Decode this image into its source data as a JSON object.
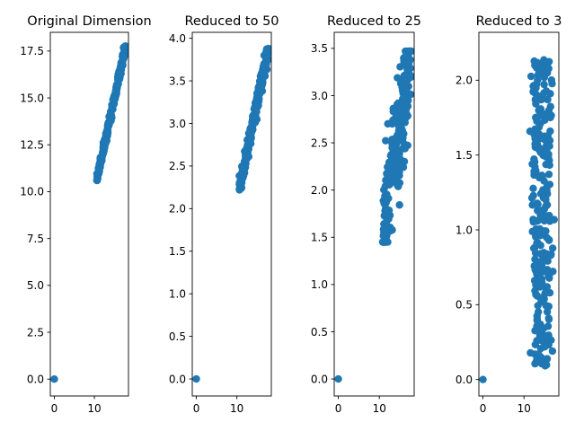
{
  "figure": {
    "background": "#ffffff",
    "marker_color": "#1f77b4"
  },
  "chart_data": [
    {
      "type": "scatter",
      "title": "Original Dimension",
      "xlim": [
        -1,
        18.5
      ],
      "ylim": [
        -0.9,
        18.5
      ],
      "xticks": [
        0,
        10
      ],
      "xtick_labels": [
        "0",
        "10"
      ],
      "yticks": [
        0,
        2.5,
        5,
        7.5,
        10,
        12.5,
        15,
        17.5
      ],
      "ytick_labels": [
        "0.0",
        "2.5",
        "5.0",
        "7.5",
        "10.0",
        "12.5",
        "15.0",
        "17.5"
      ],
      "origin_point": [
        0,
        0
      ],
      "cluster": {
        "x_range": [
          10.6,
          17.8
        ],
        "y_range": [
          10.6,
          17.8
        ],
        "y_spread": 0.15
      }
    },
    {
      "type": "scatter",
      "title": "Reduced to 50",
      "xlim": [
        -1,
        18.5
      ],
      "ylim": [
        -0.2,
        4.07
      ],
      "xticks": [
        0,
        10
      ],
      "xtick_labels": [
        "0",
        "10"
      ],
      "yticks": [
        0,
        0.5,
        1,
        1.5,
        2,
        2.5,
        3,
        3.5,
        4
      ],
      "ytick_labels": [
        "0.0",
        "0.5",
        "1.0",
        "1.5",
        "2.0",
        "2.5",
        "3.0",
        "3.5",
        "4.0"
      ],
      "origin_point": [
        0,
        0
      ],
      "cluster": {
        "x_range": [
          10.6,
          17.8
        ],
        "y_range": [
          2.22,
          3.88
        ],
        "y_spread": 0.06
      }
    },
    {
      "type": "scatter",
      "title": "Reduced to 25",
      "xlim": [
        -1,
        18.5
      ],
      "ylim": [
        -0.18,
        3.67
      ],
      "xticks": [
        0,
        10
      ],
      "xtick_labels": [
        "0",
        "10"
      ],
      "yticks": [
        0,
        0.5,
        1,
        1.5,
        2,
        2.5,
        3,
        3.5
      ],
      "ytick_labels": [
        "0.0",
        "0.5",
        "1.0",
        "1.5",
        "2.0",
        "2.5",
        "3.0",
        "3.5"
      ],
      "origin_point": [
        0,
        0
      ],
      "cluster": {
        "x_range": [
          10.8,
          17.8
        ],
        "y_range": [
          1.45,
          3.47
        ],
        "y_spread": 0.28
      }
    },
    {
      "type": "scatter",
      "title": "Reduced to 3",
      "xlim": [
        -1,
        18.5
      ],
      "ylim": [
        -0.11,
        2.32
      ],
      "xticks": [
        0,
        10
      ],
      "xtick_labels": [
        "0",
        "10"
      ],
      "yticks": [
        0,
        0.5,
        1,
        1.5,
        2
      ],
      "ytick_labels": [
        "0.0",
        "0.5",
        "1.0",
        "1.5",
        "2.0"
      ],
      "origin_point": [
        0,
        0
      ],
      "cluster": {
        "x_range": [
          10.8,
          18.2
        ],
        "y_range": [
          0.07,
          2.17
        ],
        "y_spread": 0.9
      }
    }
  ]
}
